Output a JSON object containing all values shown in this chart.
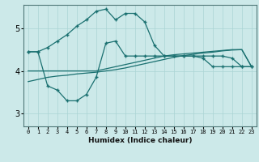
{
  "xlabel": "Humidex (Indice chaleur)",
  "background_color": "#cce9e9",
  "grid_color": "#aad4d4",
  "line_color": "#1a7070",
  "x_ticks": [
    0,
    1,
    2,
    3,
    4,
    5,
    6,
    7,
    8,
    9,
    10,
    11,
    12,
    13,
    14,
    15,
    16,
    17,
    18,
    19,
    20,
    21,
    22,
    23
  ],
  "yticks": [
    3,
    4,
    5
  ],
  "ylim": [
    2.7,
    5.55
  ],
  "xlim": [
    -0.5,
    23.5
  ],
  "line1_x": [
    0,
    1,
    2,
    3,
    4,
    5,
    6,
    7,
    8,
    9,
    10,
    11,
    12,
    13,
    14,
    15,
    16,
    17,
    18,
    19,
    20,
    21,
    22,
    23
  ],
  "line1_y": [
    4.45,
    4.45,
    4.55,
    4.7,
    4.85,
    5.05,
    5.2,
    5.4,
    5.45,
    5.2,
    5.35,
    5.35,
    5.15,
    4.6,
    4.35,
    4.35,
    4.35,
    4.35,
    4.35,
    4.35,
    4.35,
    4.3,
    4.1,
    4.1
  ],
  "line2_x": [
    0,
    1,
    2,
    3,
    4,
    5,
    6,
    7,
    8,
    9,
    10,
    11,
    12,
    13,
    14,
    15,
    16,
    17,
    18,
    19,
    20,
    21,
    22,
    23
  ],
  "line2_y": [
    4.45,
    4.45,
    3.65,
    3.55,
    3.3,
    3.3,
    3.45,
    3.85,
    4.65,
    4.7,
    4.35,
    4.35,
    4.35,
    4.35,
    4.35,
    4.35,
    4.35,
    4.35,
    4.3,
    4.1,
    4.1,
    4.1,
    4.1,
    4.1
  ],
  "line3_x": [
    0,
    1,
    2,
    3,
    4,
    5,
    6,
    7,
    8,
    9,
    10,
    11,
    12,
    13,
    14,
    15,
    16,
    17,
    18,
    19,
    20,
    21,
    22,
    23
  ],
  "line3_y": [
    4.0,
    4.0,
    4.0,
    4.0,
    4.0,
    4.0,
    4.0,
    4.0,
    4.05,
    4.1,
    4.15,
    4.2,
    4.25,
    4.3,
    4.35,
    4.38,
    4.4,
    4.42,
    4.44,
    4.46,
    4.48,
    4.5,
    4.5,
    4.1
  ],
  "line4_x": [
    0,
    1,
    2,
    3,
    4,
    5,
    6,
    7,
    8,
    9,
    10,
    11,
    12,
    13,
    14,
    15,
    16,
    17,
    18,
    19,
    20,
    21,
    22,
    23
  ],
  "line4_y": [
    3.75,
    3.8,
    3.85,
    3.88,
    3.9,
    3.93,
    3.95,
    3.97,
    4.0,
    4.03,
    4.07,
    4.12,
    4.17,
    4.22,
    4.27,
    4.32,
    4.36,
    4.39,
    4.42,
    4.44,
    4.47,
    4.49,
    4.5,
    4.1
  ]
}
